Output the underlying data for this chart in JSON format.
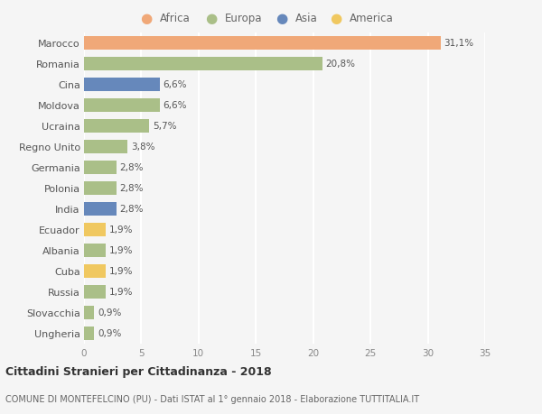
{
  "countries": [
    "Marocco",
    "Romania",
    "Cina",
    "Moldova",
    "Ucraina",
    "Regno Unito",
    "Germania",
    "Polonia",
    "India",
    "Ecuador",
    "Albania",
    "Cuba",
    "Russia",
    "Slovacchia",
    "Ungheria"
  ],
  "values": [
    31.1,
    20.8,
    6.6,
    6.6,
    5.7,
    3.8,
    2.8,
    2.8,
    2.8,
    1.9,
    1.9,
    1.9,
    1.9,
    0.9,
    0.9
  ],
  "categories": [
    "Africa",
    "Europa",
    "Asia",
    "Europa",
    "Europa",
    "Europa",
    "Europa",
    "Europa",
    "Asia",
    "America",
    "Europa",
    "America",
    "Europa",
    "Europa",
    "Europa"
  ],
  "colors": {
    "Africa": "#F0A878",
    "Europa": "#AABF88",
    "Asia": "#6688BB",
    "America": "#F0C860"
  },
  "legend_order": [
    "Africa",
    "Europa",
    "Asia",
    "America"
  ],
  "title_bold": "Cittadini Stranieri per Cittadinanza - 2018",
  "subtitle": "COMUNE DI MONTEFELCINO (PU) - Dati ISTAT al 1° gennaio 2018 - Elaborazione TUTTITALIA.IT",
  "xlim": [
    0,
    35
  ],
  "xticks": [
    0,
    5,
    10,
    15,
    20,
    25,
    30,
    35
  ],
  "background_color": "#f5f5f5",
  "grid_color": "#ffffff",
  "bar_height": 0.65
}
